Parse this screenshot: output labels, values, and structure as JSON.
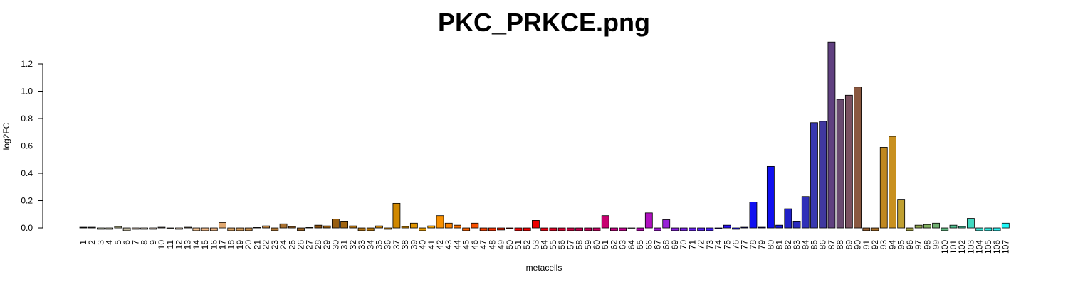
{
  "chart_data": {
    "type": "bar",
    "title": "PKC_PRKCE.png",
    "x_label": "metacells",
    "y_label": "log2FC",
    "categories": [
      "1",
      "2",
      "3",
      "4",
      "5",
      "6",
      "7",
      "8",
      "9",
      "10",
      "11",
      "12",
      "13",
      "14",
      "15",
      "16",
      "17",
      "18",
      "19",
      "20",
      "21",
      "22",
      "23",
      "24",
      "25",
      "26",
      "27",
      "28",
      "29",
      "30",
      "31",
      "32",
      "33",
      "34",
      "35",
      "36",
      "37",
      "38",
      "39",
      "40",
      "41",
      "42",
      "43",
      "44",
      "45",
      "46",
      "47",
      "48",
      "49",
      "50",
      "51",
      "52",
      "53",
      "54",
      "55",
      "56",
      "57",
      "58",
      "59",
      "60",
      "61",
      "62",
      "63",
      "64",
      "65",
      "66",
      "67",
      "68",
      "69",
      "70",
      "71",
      "72",
      "73",
      "74",
      "75",
      "76",
      "77",
      "78",
      "79",
      "80",
      "81",
      "82",
      "83",
      "84",
      "85",
      "86",
      "87",
      "88",
      "89",
      "90",
      "91",
      "92",
      "93",
      "94",
      "95",
      "96",
      "97",
      "98",
      "99",
      "100",
      "101",
      "102",
      "103",
      "104",
      "105",
      "106",
      "107"
    ],
    "values": [
      0.005,
      0.005,
      -0.01,
      -0.01,
      0.01,
      -0.02,
      -0.01,
      -0.01,
      -0.01,
      0.005,
      -0.005,
      -0.01,
      0.005,
      -0.02,
      -0.02,
      -0.02,
      0.04,
      -0.02,
      -0.02,
      -0.02,
      0.003,
      0.015,
      -0.02,
      0.03,
      0.01,
      -0.02,
      0.003,
      0.02,
      0.015,
      0.065,
      0.05,
      0.015,
      -0.02,
      -0.02,
      0.015,
      -0.01,
      0.18,
      0.01,
      0.035,
      -0.02,
      0.015,
      0.09,
      0.035,
      0.02,
      -0.02,
      0.035,
      -0.02,
      -0.02,
      -0.015,
      -0.005,
      -0.02,
      -0.02,
      0.055,
      -0.02,
      -0.02,
      -0.02,
      -0.02,
      -0.02,
      -0.02,
      -0.02,
      0.09,
      -0.02,
      -0.02,
      -0.002,
      -0.02,
      0.11,
      -0.02,
      0.06,
      -0.02,
      -0.02,
      -0.02,
      -0.02,
      -0.02,
      -0.005,
      0.02,
      -0.01,
      0.005,
      0.19,
      0.005,
      0.45,
      0.02,
      0.14,
      0.05,
      0.23,
      0.77,
      0.78,
      1.36,
      0.94,
      0.97,
      1.03,
      -0.02,
      -0.02,
      0.59,
      0.67,
      0.21,
      -0.02,
      0.02,
      0.025,
      0.035,
      -0.02,
      0.02,
      0.01,
      0.07,
      -0.02,
      -0.02,
      -0.02,
      0.035
    ],
    "colors": [
      "#333333",
      "#777777",
      "#a9b09a",
      "#b0b098",
      "#b8b890",
      "#c0b8a0",
      "#c8b8a8",
      "#c8c0b0",
      "#d0c0b0",
      "#d8c8b8",
      "#e0d0c0",
      "#e0c8b0",
      "#e8c8a0",
      "#f0c090",
      "#f0b888",
      "#e8b080",
      "#e0a870",
      "#d8a060",
      "#d09858",
      "#c89050",
      "#c08848",
      "#b88040",
      "#b07838",
      "#a87030",
      "#a06828",
      "#986020",
      "#905818",
      "#885010",
      "#905810",
      "#985e10",
      "#a06410",
      "#a86a10",
      "#b07010",
      "#b87608",
      "#c07c08",
      "#c88208",
      "#d08800",
      "#d88e00",
      "#e09400",
      "#e89a00",
      "#f0a000",
      "#f89000",
      "#f88000",
      "#f87000",
      "#f86000",
      "#f85000",
      "#f84000",
      "#f83000",
      "#f82000",
      "#f01000",
      "#f00808",
      "#f00000",
      "#f00000",
      "#e80010",
      "#e00020",
      "#d80030",
      "#d00040",
      "#c80050",
      "#c80058",
      "#c80060",
      "#c80070",
      "#c80080",
      "#c80090",
      "#c000a0",
      "#b800b0",
      "#b010c0",
      "#a018d0",
      "#9820d8",
      "#8820e0",
      "#7820e8",
      "#6820f0",
      "#5820f0",
      "#4820f8",
      "#3818f8",
      "#2810f8",
      "#1810f8",
      "#1010f8",
      "#1010f0",
      "#1010e8",
      "#1010f0",
      "#1818d8",
      "#2020c8",
      "#2828c0",
      "#3030b8",
      "#3838b0",
      "#4038a0",
      "#604080",
      "#6a4a70",
      "#7a5060",
      "#8a5840",
      "#9a6030",
      "#aa7028",
      "#c08820",
      "#c89020",
      "#c0a030",
      "#a0a040",
      "#90a850",
      "#80b060",
      "#70b070",
      "#60b880",
      "#50c090",
      "#48c8a0",
      "#40d8c0",
      "#40e0d0",
      "#38e8e0",
      "#30f0f0",
      "#20f8f8"
    ],
    "ylim": [
      -0.03,
      1.36
    ],
    "yticks": [
      {
        "value": 0,
        "label": "0.0"
      },
      0.2,
      0.4,
      0.6,
      0.8,
      {
        "value": 1,
        "label": "1.0"
      },
      1.2
    ],
    "grid": false
  }
}
